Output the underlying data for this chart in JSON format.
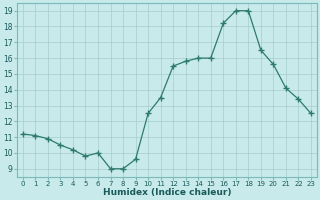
{
  "x": [
    0,
    1,
    2,
    3,
    4,
    5,
    6,
    7,
    8,
    9,
    10,
    11,
    12,
    13,
    14,
    15,
    16,
    17,
    18,
    19,
    20,
    21,
    22,
    23
  ],
  "y": [
    11.2,
    11.1,
    10.9,
    10.5,
    10.2,
    9.8,
    10.0,
    9.0,
    9.0,
    9.6,
    12.5,
    13.5,
    15.5,
    15.8,
    16.0,
    16.0,
    18.2,
    19.0,
    19.0,
    16.5,
    15.6,
    14.1,
    13.4,
    12.5
  ],
  "line_color": "#2d7a6e",
  "marker_color": "#2d7a6e",
  "bg_color": "#c8eaea",
  "grid_color": "#a8cccc",
  "xlabel": "Humidex (Indice chaleur)",
  "yticks": [
    9,
    10,
    11,
    12,
    13,
    14,
    15,
    16,
    17,
    18,
    19
  ],
  "xticks": [
    0,
    1,
    2,
    3,
    4,
    5,
    6,
    7,
    8,
    9,
    10,
    11,
    12,
    13,
    14,
    15,
    16,
    17,
    18,
    19,
    20,
    21,
    22,
    23
  ],
  "xlim": [
    -0.5,
    23.5
  ],
  "ylim": [
    8.5,
    19.5
  ]
}
